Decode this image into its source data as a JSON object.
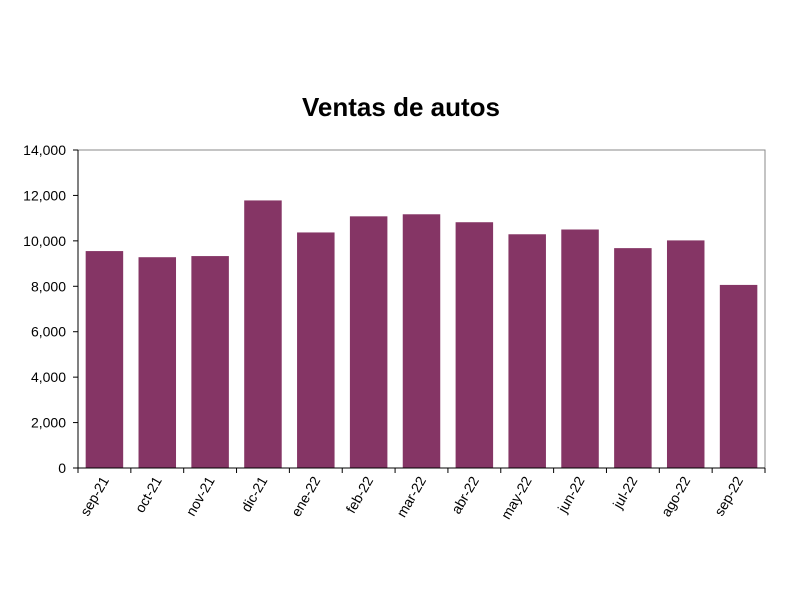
{
  "chart_data": {
    "type": "bar",
    "title": "Ventas de autos",
    "xlabel": "",
    "ylabel": "",
    "categories": [
      "sep-21",
      "oct-21",
      "nov-21",
      "dic-21",
      "ene-22",
      "feb-22",
      "mar-22",
      "abr-22",
      "may-22",
      "jun-22",
      "jul-22",
      "ago-22",
      "sep-22"
    ],
    "values": [
      9550,
      9280,
      9330,
      11780,
      10370,
      11080,
      11170,
      10820,
      10290,
      10500,
      9680,
      10020,
      8060
    ],
    "ylim": [
      0,
      14000
    ],
    "yticks": [
      0,
      2000,
      4000,
      6000,
      8000,
      10000,
      12000,
      14000
    ],
    "ytick_labels": [
      "0",
      "2,000",
      "4,000",
      "6,000",
      "8,000",
      "10,000",
      "12,000",
      "14,000"
    ],
    "bar_color": "#853565",
    "grid": false,
    "legend": "none"
  }
}
